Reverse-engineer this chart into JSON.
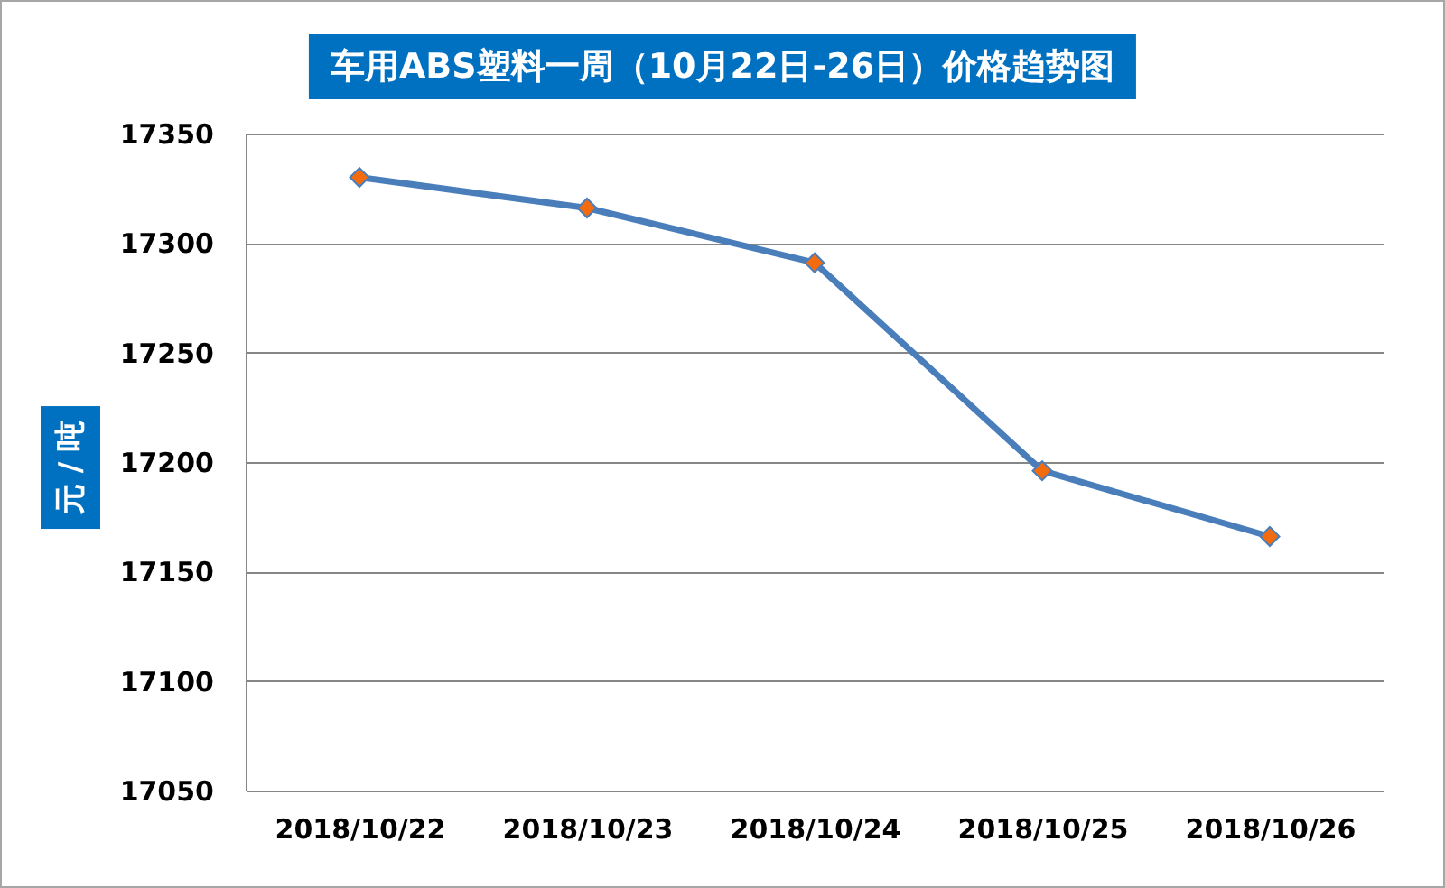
{
  "chart_data": {
    "type": "line",
    "title": "车用ABS塑料一周（10月22日-26日）价格趋势图",
    "ylabel": "元 / 吨",
    "categories": [
      "2018/10/22",
      "2018/10/23",
      "2018/10/24",
      "2018/10/25",
      "2018/10/26"
    ],
    "series": [
      {
        "color": "#4a7ebb",
        "values": [
          17330,
          17316,
          17291,
          17196,
          17166
        ]
      }
    ],
    "ylim": [
      17050,
      17350
    ],
    "yticks": [
      17050,
      17100,
      17150,
      17200,
      17250,
      17300,
      17350
    ],
    "grid": "y",
    "marker": "diamond",
    "line_style": "solid"
  }
}
